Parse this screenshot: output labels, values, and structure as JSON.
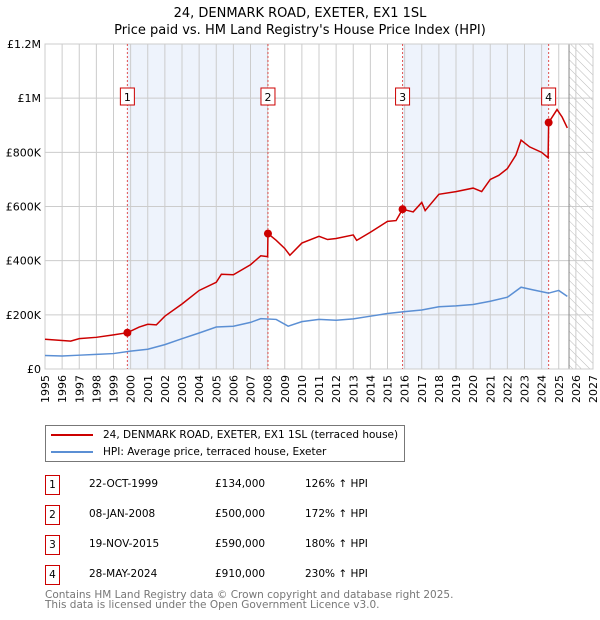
{
  "title": "24, DENMARK ROAD, EXETER, EX1 1SL",
  "subtitle": "Price paid vs. HM Land Registry's House Price Index (HPI)",
  "chart_data": {
    "type": "line",
    "xlim": [
      1995,
      2027
    ],
    "ylim": [
      0,
      1200000
    ],
    "x_ticks": [
      "1995",
      "1996",
      "1997",
      "1998",
      "1999",
      "2000",
      "2001",
      "2002",
      "2003",
      "2004",
      "2005",
      "2006",
      "2007",
      "2008",
      "2009",
      "2010",
      "2011",
      "2012",
      "2013",
      "2014",
      "2015",
      "2016",
      "2017",
      "2018",
      "2019",
      "2020",
      "2021",
      "2022",
      "2023",
      "2024",
      "2025",
      "2026",
      "2027"
    ],
    "y_ticks": [
      {
        "v": 0,
        "label": "£0"
      },
      {
        "v": 200000,
        "label": "£200K"
      },
      {
        "v": 400000,
        "label": "£400K"
      },
      {
        "v": 600000,
        "label": "£600K"
      },
      {
        "v": 800000,
        "label": "£800K"
      },
      {
        "v": 1000000,
        "label": "£1M"
      },
      {
        "v": 1200000,
        "label": "£1.2M"
      }
    ],
    "forecast_start": 2025.6,
    "series": [
      {
        "name": "24, DENMARK ROAD, EXETER, EX1 1SL (terraced house)",
        "color": "#cc0000",
        "x": [
          1995,
          1996.5,
          1997,
          1998,
          1999,
          1999.81,
          2000.5,
          2001,
          2001.5,
          2002,
          2003,
          2004,
          2005,
          2005.3,
          2006,
          2007,
          2007.6,
          2008.0,
          2008.02,
          2008.5,
          2009,
          2009.3,
          2010,
          2011,
          2011.5,
          2012,
          2013,
          2013.2,
          2014,
          2015,
          2015.5,
          2015.88,
          2016.5,
          2017,
          2017.2,
          2018,
          2019,
          2020,
          2020.5,
          2021,
          2021.5,
          2022,
          2022.5,
          2022.8,
          2023.3,
          2024,
          2024.38,
          2024.41,
          2024.9,
          2025.2,
          2025.5
        ],
        "y": [
          110000,
          103000,
          112000,
          117000,
          126000,
          134000,
          155000,
          165000,
          163000,
          195000,
          240000,
          290000,
          320000,
          350000,
          348000,
          385000,
          418000,
          415000,
          500000,
          475000,
          445000,
          420000,
          465000,
          490000,
          478000,
          482000,
          495000,
          475000,
          505000,
          545000,
          548000,
          590000,
          580000,
          615000,
          585000,
          645000,
          655000,
          668000,
          655000,
          700000,
          715000,
          740000,
          790000,
          845000,
          820000,
          800000,
          780000,
          910000,
          958000,
          930000,
          890000
        ]
      },
      {
        "name": "HPI: Average price, terraced house, Exeter",
        "color": "#5b8fd4",
        "x": [
          1995,
          1996,
          1997,
          1998,
          1999,
          2000,
          2001,
          2002,
          2003,
          2004,
          2005,
          2006,
          2007,
          2007.6,
          2008.5,
          2009.2,
          2010,
          2011,
          2012,
          2013,
          2014,
          2015,
          2016,
          2017,
          2018,
          2019,
          2020,
          2021,
          2022,
          2022.8,
          2023.5,
          2024.4,
          2025,
          2025.5
        ],
        "y": [
          50000,
          48000,
          51000,
          54000,
          57000,
          66000,
          73000,
          90000,
          112000,
          133000,
          155000,
          158000,
          172000,
          186000,
          183000,
          158000,
          175000,
          183000,
          180000,
          185000,
          195000,
          205000,
          212000,
          218000,
          230000,
          233000,
          238000,
          250000,
          265000,
          302000,
          292000,
          280000,
          290000,
          268000
        ]
      }
    ],
    "sales": [
      {
        "n": "1",
        "x": 1999.81,
        "date": "22-OCT-1999",
        "price": 134000,
        "price_label": "£134,000",
        "hpi": "126% ↑ HPI"
      },
      {
        "n": "2",
        "x": 2008.02,
        "date": "08-JAN-2008",
        "price": 500000,
        "price_label": "£500,000",
        "hpi": "172% ↑ HPI"
      },
      {
        "n": "3",
        "x": 2015.88,
        "date": "19-NOV-2015",
        "price": 590000,
        "price_label": "£590,000",
        "hpi": "180% ↑ HPI"
      },
      {
        "n": "4",
        "x": 2024.41,
        "date": "28-MAY-2024",
        "price": 910000,
        "price_label": "£910,000",
        "hpi": "230% ↑ HPI"
      }
    ]
  },
  "legend": {
    "red": "24, DENMARK ROAD, EXETER, EX1 1SL (terraced house)",
    "blue": "HPI: Average price, terraced house, Exeter"
  },
  "footer": {
    "line1": "Contains HM Land Registry data © Crown copyright and database right 2025.",
    "line2": "This data is licensed under the Open Government Licence v3.0."
  }
}
